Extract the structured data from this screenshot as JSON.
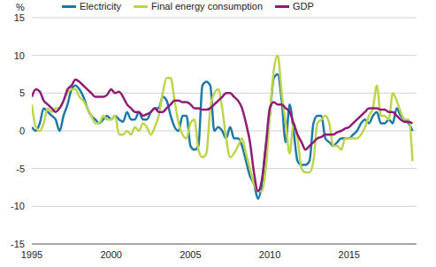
{
  "chart_data": {
    "type": "line",
    "y_label": "%",
    "x": [
      1995,
      1995.25,
      1995.5,
      1995.75,
      1996,
      1996.25,
      1996.5,
      1996.75,
      1997,
      1997.25,
      1997.5,
      1997.75,
      1998,
      1998.25,
      1998.5,
      1998.75,
      1999,
      1999.25,
      1999.5,
      1999.75,
      2000,
      2000.25,
      2000.5,
      2000.75,
      2001,
      2001.25,
      2001.5,
      2001.75,
      2002,
      2002.25,
      2002.5,
      2002.75,
      2003,
      2003.25,
      2003.5,
      2003.75,
      2004,
      2004.25,
      2004.5,
      2004.75,
      2005,
      2005.25,
      2005.5,
      2005.75,
      2006,
      2006.25,
      2006.5,
      2006.75,
      2007,
      2007.25,
      2007.5,
      2007.75,
      2008,
      2008.25,
      2008.5,
      2008.75,
      2009,
      2009.25,
      2009.5,
      2009.75,
      2010,
      2010.25,
      2010.5,
      2010.75,
      2011,
      2011.25,
      2011.5,
      2011.75,
      2012,
      2012.25,
      2012.5,
      2012.75,
      2013,
      2013.25,
      2013.5,
      2013.75,
      2014,
      2014.25,
      2014.5,
      2014.75,
      2015,
      2015.25,
      2015.5,
      2015.75,
      2016,
      2016.25,
      2016.5,
      2016.75,
      2017,
      2017.25,
      2017.5,
      2017.75,
      2018,
      2018.25,
      2018.5,
      2018.75,
      2019
    ],
    "series": [
      {
        "name": "Electricity",
        "color": "#1f77a8",
        "values": [
          0.5,
          0.0,
          1.0,
          3.0,
          2.5,
          2.0,
          1.5,
          0.0,
          2.0,
          3.5,
          5.5,
          6.0,
          5.5,
          4.5,
          3.0,
          2.0,
          1.5,
          1.0,
          1.5,
          2.0,
          1.5,
          2.0,
          1.5,
          1.2,
          2.5,
          1.5,
          1.5,
          2.5,
          1.5,
          1.5,
          2.5,
          3.0,
          3.0,
          4.5,
          4.0,
          2.0,
          0.5,
          0.0,
          2.0,
          2.0,
          -2.0,
          -2.5,
          -2.0,
          6.0,
          6.5,
          6.0,
          0.0,
          0.5,
          0.0,
          -1.0,
          0.5,
          -1.0,
          -1.0,
          -2.0,
          -4.0,
          -6.0,
          -7.0,
          -9.0,
          -7.0,
          -2.0,
          2.0,
          7.0,
          7.5,
          4.0,
          -1.5,
          3.5,
          0.0,
          -4.0,
          -4.5,
          -4.5,
          -4.0,
          1.0,
          2.0,
          2.0,
          -1.0,
          -1.5,
          -2.0,
          -1.5,
          -1.0,
          -1.0,
          -1.0,
          -0.5,
          0.0,
          1.0,
          1.5,
          1.0,
          2.0,
          2.5,
          1.0,
          1.0,
          1.5,
          1.0,
          3.0,
          2.0,
          1.5,
          1.0,
          0.0
        ]
      },
      {
        "name": "Final energy consumption",
        "color": "#bcd64c",
        "values": [
          3.5,
          0.5,
          0.0,
          1.0,
          3.0,
          2.5,
          3.0,
          3.0,
          4.0,
          5.0,
          5.5,
          5.5,
          4.5,
          4.0,
          3.0,
          2.0,
          1.0,
          1.0,
          2.0,
          1.5,
          1.5,
          2.0,
          -0.5,
          -0.5,
          0.0,
          -0.5,
          0.5,
          0.0,
          1.0,
          0.5,
          -0.5,
          0.5,
          2.0,
          5.0,
          7.0,
          7.0,
          4.0,
          1.0,
          -0.5,
          -1.0,
          1.0,
          1.5,
          -2.5,
          -3.5,
          -3.0,
          3.0,
          5.0,
          5.5,
          3.0,
          -1.0,
          -3.5,
          -3.0,
          -2.0,
          -1.0,
          -3.0,
          -5.0,
          -7.0,
          -8.0,
          -8.0,
          -5.0,
          2.0,
          8.0,
          10.0,
          5.0,
          1.0,
          -3.0,
          1.0,
          -1.0,
          -5.0,
          -5.5,
          -5.5,
          -4.0,
          1.0,
          1.5,
          2.0,
          1.0,
          -2.0,
          -2.0,
          -2.5,
          -1.0,
          -1.0,
          -1.0,
          -1.0,
          -0.5,
          0.5,
          2.0,
          3.0,
          6.0,
          2.0,
          2.0,
          1.5,
          5.0,
          4.0,
          2.5,
          1.5,
          1.5,
          -4.0
        ]
      },
      {
        "name": "GDP",
        "color": "#8e1b74",
        "values": [
          4.5,
          5.5,
          5.2,
          4.0,
          3.5,
          3.0,
          2.5,
          3.0,
          4.0,
          5.5,
          6.0,
          6.8,
          6.5,
          6.0,
          5.5,
          5.0,
          4.5,
          4.5,
          4.5,
          4.8,
          5.5,
          5.0,
          5.2,
          4.5,
          3.5,
          3.0,
          2.5,
          2.5,
          2.0,
          2.2,
          2.5,
          3.0,
          2.5,
          2.5,
          3.0,
          3.5,
          4.0,
          4.0,
          3.8,
          3.8,
          3.5,
          3.0,
          3.0,
          2.8,
          2.8,
          3.0,
          3.5,
          4.0,
          4.5,
          5.0,
          5.0,
          4.5,
          4.0,
          3.0,
          1.0,
          -1.5,
          -5.5,
          -8.0,
          -6.5,
          -2.0,
          3.0,
          3.8,
          3.5,
          3.5,
          3.0,
          2.5,
          1.0,
          -0.5,
          -1.5,
          -2.5,
          -2.0,
          -1.5,
          -1.0,
          -0.8,
          -0.5,
          -0.5,
          -0.5,
          -0.2,
          0.0,
          0.3,
          0.5,
          1.0,
          1.5,
          2.0,
          2.5,
          3.0,
          3.0,
          3.0,
          2.8,
          2.8,
          2.5,
          2.5,
          2.0,
          1.5,
          1.2,
          1.2,
          1.0
        ]
      }
    ],
    "xlim": [
      1995,
      2019.25
    ],
    "xticks": [
      1995,
      2000,
      2005,
      2010,
      2015
    ],
    "ylim": [
      -15,
      15
    ],
    "yticks": [
      -15,
      -10,
      -5,
      0,
      5,
      10,
      15
    ],
    "grid": "y",
    "legend": "top"
  }
}
